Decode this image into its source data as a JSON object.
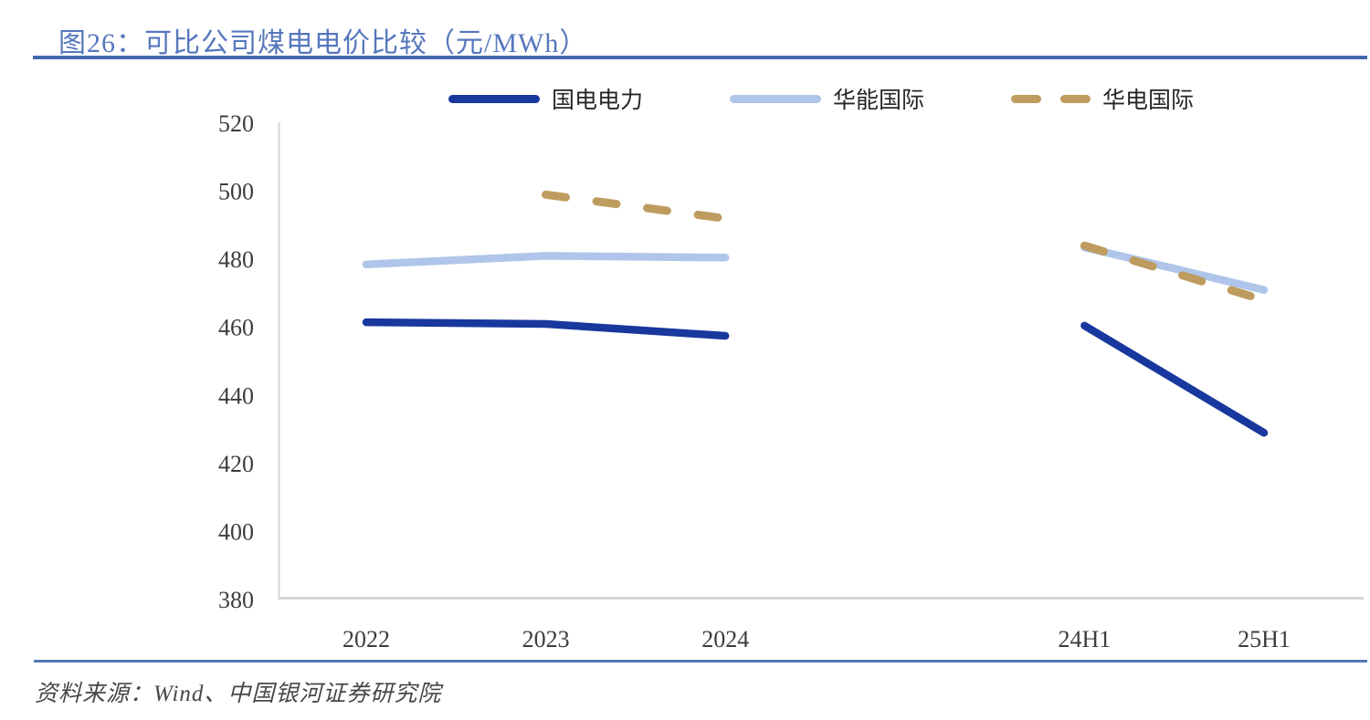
{
  "figure": {
    "title": "图26：可比公司煤电电价比较（元/MWh）",
    "source": "资料来源：Wind、中国银河证券研究院"
  },
  "colors": {
    "title_text": "#5677BD",
    "rule_top": "#4467AE",
    "rule_bottom": "#5478B8",
    "axis_line": "#D6D6D6",
    "axis_text": "#3D3D3D",
    "legend_text": "#262626",
    "source_text": "#474747"
  },
  "chart_data": {
    "type": "line",
    "title": "可比公司煤电电价比较",
    "unit": "元/MWh",
    "categories": [
      "2022",
      "2023",
      "2024",
      "",
      "24H1",
      "25H1"
    ],
    "series": [
      {
        "name": "国电电力",
        "color": "#18389E",
        "line_style": "solid",
        "values": [
          461.5,
          461,
          457.5,
          null,
          460.5,
          429
        ]
      },
      {
        "name": "华能国际",
        "color": "#AFC6EA",
        "line_style": "solid",
        "values": [
          478.5,
          481,
          480.5,
          null,
          483.5,
          471
        ]
      },
      {
        "name": "华电国际",
        "color": "#BE9B5F",
        "line_style": "dashed",
        "values": [
          null,
          499,
          492,
          null,
          484,
          468
        ]
      }
    ],
    "ylim": [
      380,
      520
    ],
    "ytick_step": 20,
    "grid": false,
    "legend_position": "top"
  }
}
